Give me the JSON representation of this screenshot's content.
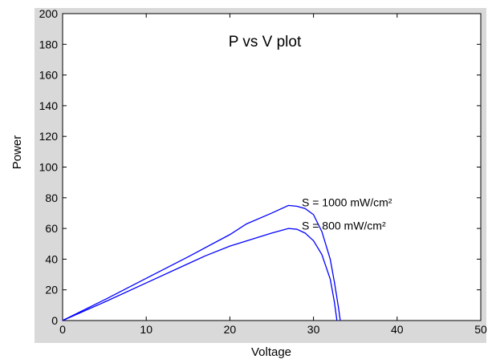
{
  "chart_data": {
    "type": "line",
    "title": "P vs V plot",
    "xlabel": "Voltage",
    "ylabel": "Power",
    "xlim": [
      0,
      50
    ],
    "ylim": [
      0,
      200
    ],
    "xticks": [
      0,
      10,
      20,
      30,
      40,
      50
    ],
    "yticks": [
      0,
      20,
      40,
      60,
      80,
      100,
      120,
      140,
      160,
      180,
      200
    ],
    "grid": false,
    "legend": "none",
    "colors": {
      "series": "#0000ff",
      "frame": "#d9d9d9",
      "axes_bg": "#ffffff"
    },
    "series": [
      {
        "annotation": "S = 1000 mW/cm²",
        "x": [
          0,
          5,
          10,
          15,
          20,
          22,
          25,
          27,
          28,
          29,
          30,
          31,
          32,
          32.5,
          33.0,
          33.2
        ],
        "y": [
          0,
          13.5,
          27.5,
          41.5,
          56,
          63,
          70,
          75,
          74.5,
          73,
          69,
          58,
          40,
          25,
          8,
          0
        ]
      },
      {
        "annotation": "S = 800 mW/cm²",
        "x": [
          0,
          5,
          10,
          15,
          17,
          20,
          25,
          27,
          28,
          29,
          30,
          31,
          32,
          32.5,
          32.8
        ],
        "y": [
          0,
          12,
          24.5,
          37,
          42,
          48.5,
          57,
          60,
          59.5,
          57,
          52,
          43,
          27,
          12,
          0
        ]
      }
    ],
    "annotations": [
      {
        "text": "S = 1000 mW/cm²",
        "x": 28.6,
        "y": 77
      },
      {
        "text": "S = 800 mW/cm²",
        "x": 28.6,
        "y": 62
      }
    ]
  }
}
